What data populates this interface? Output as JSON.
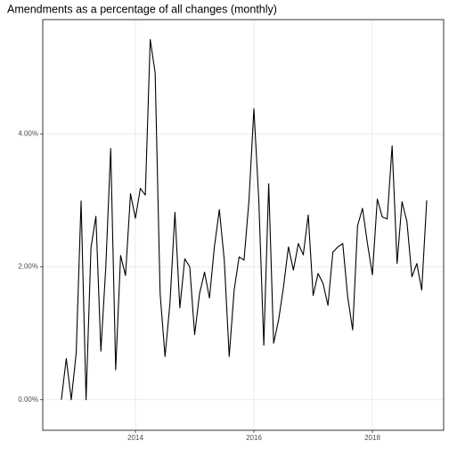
{
  "chart_data": {
    "type": "line",
    "title": "Amendments as a percentage of all changes (monthly)",
    "x": [
      2012.75,
      2012.833,
      2012.917,
      2013.0,
      2013.083,
      2013.167,
      2013.25,
      2013.333,
      2013.417,
      2013.5,
      2013.583,
      2013.667,
      2013.75,
      2013.833,
      2013.917,
      2014.0,
      2014.083,
      2014.167,
      2014.25,
      2014.333,
      2014.417,
      2014.5,
      2014.583,
      2014.667,
      2014.75,
      2014.833,
      2014.917,
      2015.0,
      2015.083,
      2015.167,
      2015.25,
      2015.333,
      2015.417,
      2015.5,
      2015.583,
      2015.667,
      2015.75,
      2015.833,
      2015.917,
      2016.0,
      2016.083,
      2016.167,
      2016.25,
      2016.333,
      2016.417,
      2016.5,
      2016.583,
      2016.667,
      2016.75,
      2016.833,
      2016.917,
      2017.0,
      2017.083,
      2017.167,
      2017.25,
      2017.333,
      2017.417,
      2017.5,
      2017.583,
      2017.667,
      2017.75,
      2017.833,
      2017.917,
      2018.0,
      2018.083,
      2018.167,
      2018.25,
      2018.333,
      2018.417,
      2018.5,
      2018.583,
      2018.667,
      2018.75,
      2018.833,
      2018.917
    ],
    "series": [
      {
        "color": "#000000",
        "values": [
          0,
          0.62,
          0,
          0.7,
          2.99,
          0,
          2.29,
          2.76,
          0.73,
          2.0,
          3.78,
          0.45,
          2.17,
          1.87,
          3.1,
          2.73,
          3.18,
          3.08,
          5.42,
          4.92,
          1.6,
          0.65,
          1.45,
          2.82,
          1.38,
          2.12,
          2.0,
          0.98,
          1.6,
          1.92,
          1.53,
          2.3,
          2.86,
          2.1,
          0.65,
          1.65,
          2.15,
          2.1,
          3.0,
          4.38,
          3.0,
          0.82,
          3.25,
          0.85,
          1.2,
          1.7,
          2.3,
          1.95,
          2.35,
          2.18,
          2.78,
          1.57,
          1.9,
          1.75,
          1.42,
          2.22,
          2.3,
          2.35,
          1.55,
          1.05,
          2.62,
          2.88,
          2.35,
          1.88,
          3.02,
          2.75,
          2.72,
          3.82,
          2.05,
          2.98,
          2.68,
          1.85,
          2.05,
          1.65,
          3.0
        ]
      }
    ],
    "xlim": [
      2012.436,
      2019.203
    ],
    "xticks": [
      2014,
      2016,
      2018
    ],
    "ylim": [
      -0.46,
      5.72
    ],
    "yticks": [
      {
        "value": 0,
        "label": "0.00%"
      },
      {
        "value": 2,
        "label": "2.00%"
      },
      {
        "value": 4,
        "label": "4.00%"
      }
    ],
    "grid": true
  }
}
